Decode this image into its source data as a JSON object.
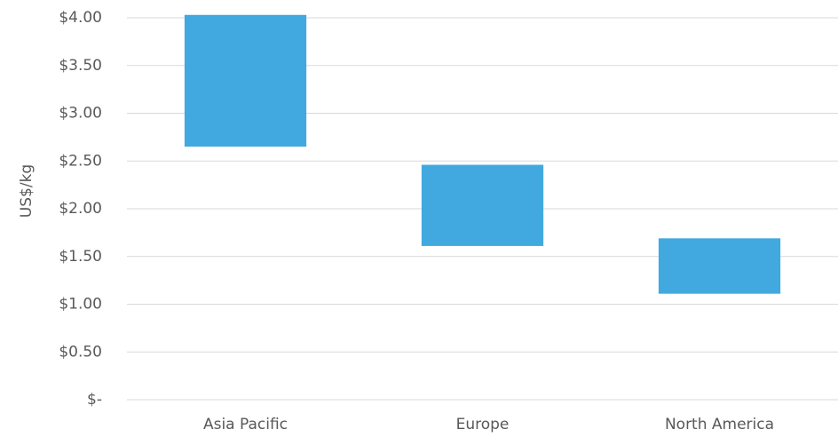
{
  "chart_data": {
    "type": "floating_bar",
    "y_label": "US$/kg",
    "categories": [
      "Asia Pacific",
      "Europe",
      "North America"
    ],
    "low": [
      2.65,
      1.61,
      1.11
    ],
    "high": [
      4.03,
      2.46,
      1.69
    ],
    "color": "#41a9df",
    "ylim": [
      0,
      4
    ],
    "yticks": [
      {
        "value": 0,
        "label": "$-"
      },
      {
        "value": 0.5,
        "label": "$0.50"
      },
      {
        "value": 1,
        "label": "$1.00"
      },
      {
        "value": 1.5,
        "label": "$1.50"
      },
      {
        "value": 2,
        "label": "$2.00"
      },
      {
        "value": 2.5,
        "label": "$2.50"
      },
      {
        "value": 3,
        "label": "$3.00"
      },
      {
        "value": 3.5,
        "label": "$3.50"
      },
      {
        "value": 4,
        "label": "$4.00"
      }
    ],
    "grid": true
  }
}
